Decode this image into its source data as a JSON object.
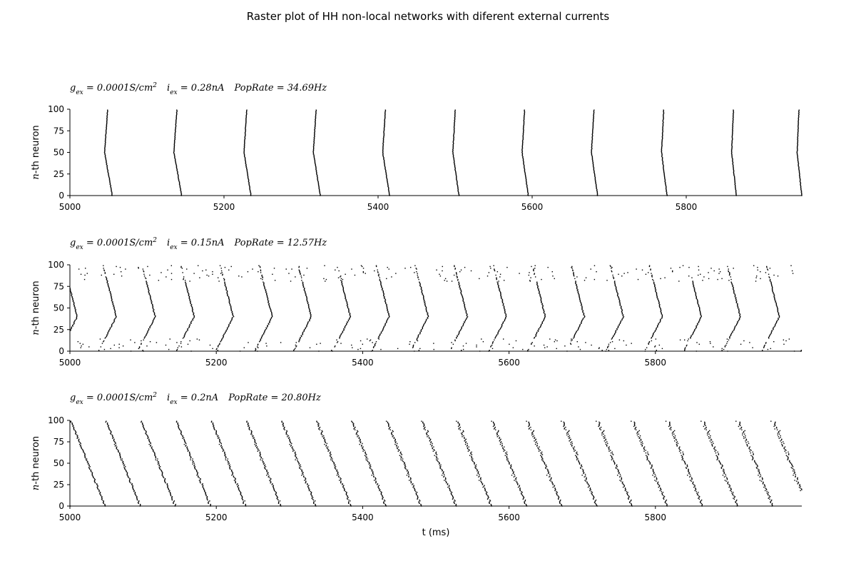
{
  "figure": {
    "title": "Raster plot of HH non-local networks with diferent external currents"
  },
  "chart_data": [
    {
      "type": "scatter",
      "title": "g_{ex} = 0.0001 S/cm^2   i_{ex} = 0.28 nA   PopRate = 34.69 Hz",
      "title_parts": {
        "g": "g",
        "g_sub": "ex",
        "g_val": " = 0.0001S/cm",
        "g_sup": "2",
        "i": "i",
        "i_sub": "ex",
        "i_val": " = 0.28nA",
        "rate": "PopRate = 34.69Hz"
      },
      "xlabel": "",
      "ylabel": "n-th neuron",
      "xlim": [
        5000,
        5950
      ],
      "ylim": [
        0,
        100
      ],
      "xticks": [
        5000,
        5200,
        5400,
        5600,
        5800
      ],
      "yticks": [
        0,
        25,
        50,
        75,
        100
      ],
      "pattern": "synchronous-bursts",
      "burst_times": [
        5055,
        5145,
        5235,
        5325,
        5415,
        5505,
        5595,
        5685,
        5775,
        5865,
        5950
      ],
      "burst_spread_ms": [
        10,
        10,
        9,
        9,
        9,
        8,
        8,
        8,
        7,
        6,
        6
      ],
      "neurons": 100
    },
    {
      "type": "scatter",
      "title": "g_{ex} = 0.0001 S/cm^2   i_{ex} = 0.15 nA   PopRate = 12.57 Hz",
      "title_parts": {
        "g": "g",
        "g_sub": "ex",
        "g_val": " = 0.0001S/cm",
        "g_sup": "2",
        "i": "i",
        "i_sub": "ex",
        "i_val": " = 0.15nA",
        "rate": "PopRate = 12.57Hz"
      },
      "xlabel": "",
      "ylabel": "n-th neuron",
      "xlim": [
        5000,
        6000
      ],
      "ylim": [
        0,
        100
      ],
      "xticks": [
        5000,
        5200,
        5400,
        5600,
        5800
      ],
      "yticks": [
        0,
        25,
        50,
        75,
        100
      ],
      "pattern": "traveling-waves",
      "wave_period_ms": 53.3,
      "wave_first_peak_ms": 5010,
      "neurons": 100
    },
    {
      "type": "scatter",
      "title": "g_{ex} = 0.0001 S/cm^2   i_{ex} = 0.2 nA   PopRate = 20.80 Hz",
      "title_parts": {
        "g": "g",
        "g_sub": "ex",
        "g_val": " = 0.0001S/cm",
        "g_sup": "2",
        "i": "i",
        "i_sub": "ex",
        "i_val": " = 0.2nA",
        "rate": "PopRate = 20.80Hz"
      },
      "xlabel": "t (ms)",
      "ylabel": "n-th neuron",
      "xlim": [
        5000,
        6000
      ],
      "ylim": [
        0,
        100
      ],
      "xticks": [
        5000,
        5200,
        5400,
        5600,
        5800
      ],
      "yticks": [
        0,
        25,
        50,
        75,
        100
      ],
      "pattern": "asynchronous-diagonal",
      "spike_interval_ms": 48,
      "neurons": 100
    }
  ]
}
